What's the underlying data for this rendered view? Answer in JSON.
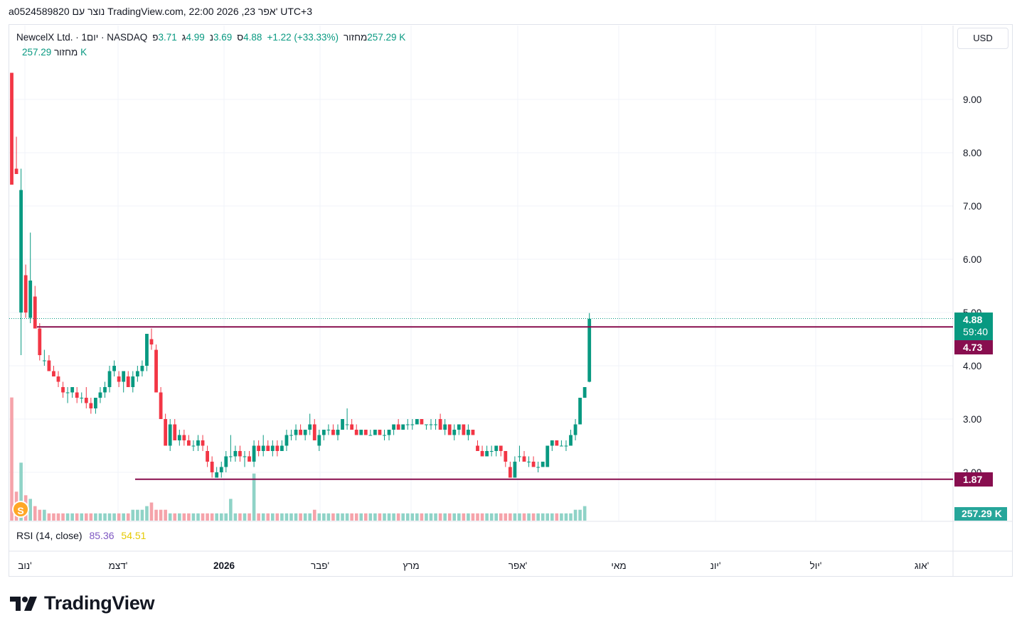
{
  "caption": "a0524589820 נוצר עם TradingView.com, 22:00 2026 ,23 אפר' UTC+3",
  "legend": {
    "symbol": "NewcelX Ltd. · 1יום · NASDAQ",
    "open_label": "פ",
    "open": "3.71",
    "high_label": "ג",
    "high": "4.99",
    "low_label": "נ",
    "low": "3.69",
    "close_label": "ס",
    "close": "4.88",
    "change": "+1.22 (+33.33%)",
    "volume_label": "מחזור",
    "volume": "257.29 K"
  },
  "volume_legend": {
    "label": "מחזור",
    "value": "257.29 K"
  },
  "currency_button": "USD",
  "rsi_legend": {
    "label": "RSI (14, close)",
    "rsi": "85.36",
    "ma": "54.51"
  },
  "price_tags": {
    "last": "4.88",
    "countdown": "59:40",
    "resistance": "4.73",
    "support": "1.87",
    "volume": "257.29 K"
  },
  "logo_text": "TradingView",
  "event_icon": "S",
  "colors": {
    "up": "#089981",
    "down": "#f23645",
    "line": "#880e4f",
    "rsi": "#7e57c2",
    "rsi_ma": "#e5c900"
  },
  "chart_data": {
    "type": "candlestick",
    "y_axis": {
      "ticks": [
        "9.00",
        "8.00",
        "7.00",
        "6.00",
        "5.00",
        "4.00",
        "3.00",
        "2.00"
      ],
      "range": [
        1.2,
        10.3
      ]
    },
    "x_axis": {
      "ticks": [
        "נוב'",
        "דצמ'",
        "2026",
        "פבר'",
        "מרץ",
        "אפר'",
        "מאי",
        "יונ'",
        "יול'",
        "אוג'"
      ]
    },
    "horizontal_lines": [
      4.73,
      1.87
    ],
    "ohlc": [
      [
        9.5,
        9.5,
        7.4,
        7.4
      ],
      [
        7.7,
        8.3,
        7.6,
        7.6
      ],
      [
        5.0,
        7.7,
        4.2,
        7.3
      ],
      [
        5.7,
        5.9,
        4.9,
        5.0
      ],
      [
        4.9,
        6.5,
        4.8,
        5.6
      ],
      [
        5.3,
        5.5,
        4.7,
        4.7
      ],
      [
        4.7,
        4.8,
        4.1,
        4.2
      ],
      [
        4.1,
        4.3,
        4.0,
        4.1
      ],
      [
        4.1,
        4.2,
        3.9,
        3.9
      ],
      [
        3.9,
        4.0,
        3.8,
        3.8
      ],
      [
        3.8,
        3.9,
        3.6,
        3.7
      ],
      [
        3.6,
        3.7,
        3.4,
        3.5
      ],
      [
        3.5,
        3.6,
        3.3,
        3.5
      ],
      [
        3.5,
        3.6,
        3.4,
        3.6
      ],
      [
        3.5,
        3.6,
        3.3,
        3.4
      ],
      [
        3.4,
        3.5,
        3.3,
        3.4
      ],
      [
        3.4,
        3.6,
        3.2,
        3.3
      ],
      [
        3.3,
        3.4,
        3.1,
        3.2
      ],
      [
        3.2,
        3.4,
        3.1,
        3.4
      ],
      [
        3.4,
        3.6,
        3.3,
        3.5
      ],
      [
        3.5,
        3.7,
        3.4,
        3.6
      ],
      [
        3.6,
        4.0,
        3.5,
        3.9
      ],
      [
        3.9,
        4.1,
        3.8,
        4.0
      ],
      [
        3.8,
        3.9,
        3.6,
        3.7
      ],
      [
        3.7,
        3.9,
        3.5,
        3.9
      ],
      [
        3.8,
        3.9,
        3.6,
        3.6
      ],
      [
        3.6,
        3.9,
        3.5,
        3.8
      ],
      [
        3.8,
        4.0,
        3.7,
        3.9
      ],
      [
        3.9,
        4.1,
        3.8,
        4.0
      ],
      [
        4.0,
        4.6,
        3.9,
        4.6
      ],
      [
        4.5,
        4.7,
        4.3,
        4.4
      ],
      [
        4.3,
        4.4,
        3.5,
        3.5
      ],
      [
        3.5,
        3.6,
        3.0,
        3.0
      ],
      [
        3.0,
        3.1,
        2.5,
        2.5
      ],
      [
        2.5,
        3.0,
        2.4,
        2.9
      ],
      [
        2.9,
        3.0,
        2.6,
        2.6
      ],
      [
        2.6,
        2.8,
        2.5,
        2.7
      ],
      [
        2.7,
        2.8,
        2.5,
        2.6
      ],
      [
        2.6,
        2.7,
        2.5,
        2.5
      ],
      [
        2.5,
        2.6,
        2.4,
        2.5
      ],
      [
        2.5,
        2.7,
        2.4,
        2.6
      ],
      [
        2.6,
        2.7,
        2.4,
        2.5
      ],
      [
        2.4,
        2.5,
        2.1,
        2.2
      ],
      [
        2.2,
        2.3,
        1.9,
        2.0
      ],
      [
        1.9,
        2.1,
        1.9,
        2.0
      ],
      [
        2.0,
        2.2,
        1.9,
        2.1
      ],
      [
        2.1,
        2.4,
        2.0,
        2.3
      ],
      [
        2.3,
        2.7,
        2.2,
        2.3
      ],
      [
        2.3,
        2.5,
        2.2,
        2.4
      ],
      [
        2.4,
        2.5,
        2.2,
        2.3
      ],
      [
        2.3,
        2.4,
        2.1,
        2.3
      ],
      [
        2.3,
        2.4,
        2.2,
        2.2
      ],
      [
        2.2,
        2.6,
        2.1,
        2.5
      ],
      [
        2.5,
        2.6,
        2.3,
        2.4
      ],
      [
        2.4,
        2.7,
        2.3,
        2.5
      ],
      [
        2.5,
        2.6,
        2.4,
        2.4
      ],
      [
        2.4,
        2.6,
        2.3,
        2.5
      ],
      [
        2.5,
        2.6,
        2.3,
        2.4
      ],
      [
        2.4,
        2.6,
        2.4,
        2.5
      ],
      [
        2.5,
        2.8,
        2.4,
        2.7
      ],
      [
        2.7,
        2.8,
        2.6,
        2.7
      ],
      [
        2.7,
        2.9,
        2.6,
        2.8
      ],
      [
        2.8,
        2.9,
        2.7,
        2.7
      ],
      [
        2.7,
        2.8,
        2.6,
        2.8
      ],
      [
        2.8,
        3.1,
        2.7,
        2.9
      ],
      [
        2.9,
        3.0,
        2.6,
        2.6
      ],
      [
        2.5,
        2.8,
        2.4,
        2.7
      ],
      [
        2.7,
        2.8,
        2.6,
        2.8
      ],
      [
        2.8,
        2.9,
        2.7,
        2.8
      ],
      [
        2.8,
        2.9,
        2.7,
        2.7
      ],
      [
        2.7,
        2.9,
        2.6,
        2.8
      ],
      [
        2.8,
        3.0,
        2.8,
        3.0
      ],
      [
        2.9,
        3.2,
        2.8,
        2.9
      ],
      [
        2.9,
        3.0,
        2.8,
        2.8
      ],
      [
        2.8,
        2.9,
        2.7,
        2.7
      ],
      [
        2.7,
        2.8,
        2.7,
        2.8
      ],
      [
        2.8,
        2.8,
        2.7,
        2.7
      ],
      [
        2.7,
        2.8,
        2.7,
        2.7
      ],
      [
        2.7,
        2.8,
        2.7,
        2.8
      ],
      [
        2.8,
        2.8,
        2.7,
        2.7
      ],
      [
        2.7,
        2.8,
        2.6,
        2.7
      ],
      [
        2.7,
        2.8,
        2.6,
        2.8
      ],
      [
        2.8,
        2.9,
        2.7,
        2.9
      ],
      [
        2.9,
        3.0,
        2.8,
        2.8
      ],
      [
        2.8,
        2.9,
        2.8,
        2.9
      ],
      [
        2.9,
        3.0,
        2.8,
        2.9
      ],
      [
        2.9,
        3.0,
        2.8,
        2.9
      ],
      [
        2.9,
        3.0,
        2.9,
        3.0
      ],
      [
        3.0,
        3.0,
        2.9,
        2.9
      ],
      [
        2.9,
        2.9,
        2.8,
        2.9
      ],
      [
        2.9,
        3.0,
        2.8,
        2.9
      ],
      [
        2.9,
        3.0,
        2.8,
        2.9
      ],
      [
        3.0,
        3.1,
        2.8,
        2.8
      ],
      [
        2.8,
        3.0,
        2.7,
        2.9
      ],
      [
        2.9,
        2.9,
        2.7,
        2.7
      ],
      [
        2.7,
        2.9,
        2.6,
        2.8
      ],
      [
        2.8,
        2.9,
        2.7,
        2.9
      ],
      [
        2.9,
        2.9,
        2.7,
        2.7
      ],
      [
        2.7,
        2.9,
        2.6,
        2.8
      ],
      [
        2.8,
        2.8,
        2.7,
        2.7
      ],
      [
        2.5,
        2.6,
        2.4,
        2.4
      ],
      [
        2.4,
        2.5,
        2.3,
        2.3
      ],
      [
        2.3,
        2.5,
        2.3,
        2.4
      ],
      [
        2.4,
        2.5,
        2.3,
        2.4
      ],
      [
        2.4,
        2.5,
        2.3,
        2.5
      ],
      [
        2.5,
        2.5,
        2.3,
        2.4
      ],
      [
        2.4,
        2.4,
        2.1,
        2.2
      ],
      [
        2.1,
        2.2,
        1.9,
        1.9
      ],
      [
        1.9,
        2.3,
        1.9,
        2.2
      ],
      [
        2.3,
        2.5,
        2.2,
        2.3
      ],
      [
        2.3,
        2.4,
        2.2,
        2.2
      ],
      [
        2.2,
        2.3,
        2.1,
        2.2
      ],
      [
        2.2,
        2.3,
        2.1,
        2.1
      ],
      [
        2.1,
        2.2,
        2.0,
        2.1
      ],
      [
        2.1,
        2.2,
        2.1,
        2.2
      ],
      [
        2.1,
        2.5,
        2.1,
        2.5
      ],
      [
        2.5,
        2.6,
        2.4,
        2.6
      ],
      [
        2.6,
        2.6,
        2.5,
        2.5
      ],
      [
        2.5,
        2.6,
        2.5,
        2.5
      ],
      [
        2.5,
        2.6,
        2.4,
        2.5
      ],
      [
        2.5,
        2.8,
        2.5,
        2.7
      ],
      [
        2.7,
        3.0,
        2.6,
        2.9
      ],
      [
        2.9,
        3.4,
        2.9,
        3.4
      ],
      [
        3.4,
        3.6,
        3.4,
        3.6
      ],
      [
        3.7,
        4.99,
        3.69,
        4.88
      ]
    ],
    "volume": [
      3.4,
      0.8,
      1.6,
      0.7,
      0.6,
      0.4,
      0.3,
      0.3,
      0.2,
      0.2,
      0.2,
      0.2,
      0.2,
      0.2,
      0.2,
      0.2,
      0.2,
      0.2,
      0.2,
      0.2,
      0.2,
      0.2,
      0.2,
      0.2,
      0.2,
      0.2,
      0.3,
      0.3,
      0.3,
      0.4,
      0.5,
      0.3,
      0.3,
      0.3,
      0.2,
      0.2,
      0.2,
      0.2,
      0.2,
      0.2,
      0.2,
      0.2,
      0.2,
      0.2,
      0.2,
      0.2,
      0.2,
      0.6,
      0.2,
      0.2,
      0.2,
      0.2,
      1.3,
      0.2,
      0.2,
      0.2,
      0.2,
      0.2,
      0.2,
      0.2,
      0.2,
      0.2,
      0.2,
      0.2,
      0.2,
      0.3,
      0.2,
      0.2,
      0.2,
      0.2,
      0.2,
      0.2,
      0.2,
      0.2,
      0.2,
      0.2,
      0.2,
      0.2,
      0.2,
      0.2,
      0.2,
      0.2,
      0.2,
      0.2,
      0.2,
      0.2,
      0.2,
      0.2,
      0.2,
      0.2,
      0.2,
      0.2,
      0.2,
      0.2,
      0.2,
      0.2,
      0.2,
      0.2,
      0.2,
      0.2,
      0.2,
      0.2,
      0.2,
      0.2,
      0.2,
      0.2,
      0.2,
      0.2,
      0.2,
      0.2,
      0.2,
      0.2,
      0.2,
      0.2,
      0.2,
      0.2,
      0.2,
      0.2,
      0.2,
      0.2,
      0.2,
      0.3,
      0.3,
      0.4
    ]
  }
}
